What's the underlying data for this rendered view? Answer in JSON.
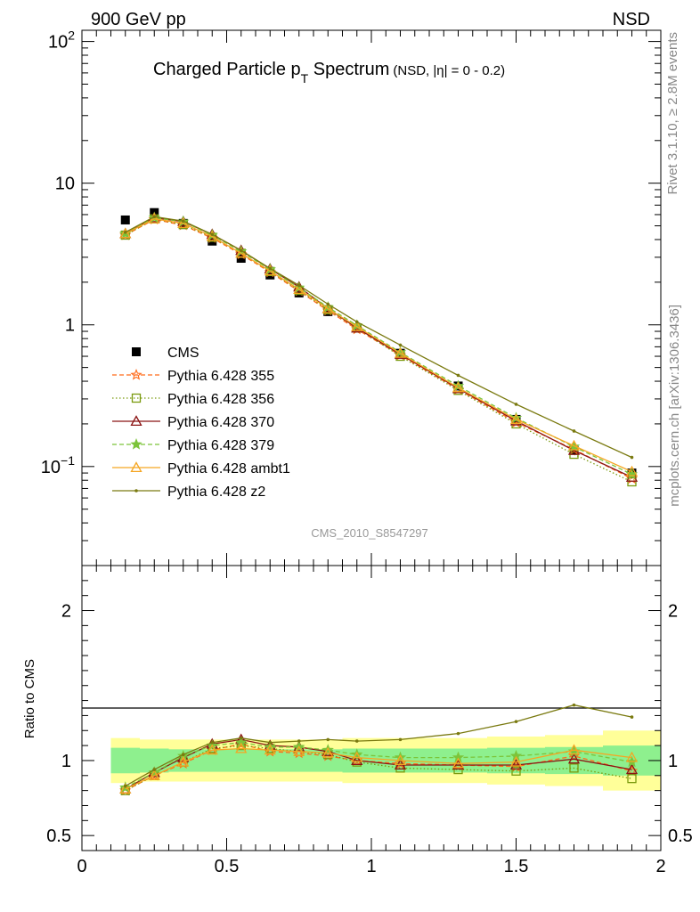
{
  "header": {
    "left": "900 GeV pp",
    "right": "NSD",
    "side_top": "Rivet 3.1.10, ≥ 2.8M events",
    "side_bottom": "mcplots.cern.ch [arXiv:1306.3436]"
  },
  "chart_data": [
    {
      "type": "scatter",
      "panel": "main",
      "title_main": "Charged Particle p",
      "title_sub": "T",
      "title_tail": " Spectrum",
      "title_small": "(NSD, |η| =   0 - 0.2)",
      "analysis_label": "CMS_2010_S8547297",
      "xlabel": "",
      "ylabel": "",
      "xlim": [
        0,
        2
      ],
      "ylim": [
        0.02,
        120
      ],
      "y_scale": "log",
      "y_ticks": [
        {
          "value": 100,
          "base": "10",
          "exp": "2"
        },
        {
          "value": 10,
          "base": "10",
          "exp": ""
        },
        {
          "value": 1,
          "base": "1",
          "exp": ""
        },
        {
          "value": 0.1,
          "base": "10",
          "exp": "−1"
        }
      ],
      "legend_position": "middle-left",
      "x": [
        0.15,
        0.25,
        0.35,
        0.45,
        0.55,
        0.65,
        0.75,
        0.85,
        0.95,
        1.1,
        1.3,
        1.5,
        1.7,
        1.9
      ],
      "series": [
        {
          "name": "CMS",
          "color": "#000000",
          "marker": "square-filled",
          "line": "none",
          "values": [
            5.5,
            6.2,
            5.2,
            3.9,
            2.95,
            2.25,
            1.68,
            1.24,
            0.95,
            0.63,
            0.37,
            0.215,
            0.13,
            0.09
          ]
        },
        {
          "name": "Pythia 6.428 355",
          "color": "#ff6b1a",
          "marker": "star-open",
          "line": "dashed",
          "values": [
            4.3,
            5.55,
            5.05,
            4.1,
            3.15,
            2.35,
            1.73,
            1.26,
            0.93,
            0.61,
            0.35,
            0.205,
            0.132,
            0.082
          ]
        },
        {
          "name": "Pythia 6.428 356",
          "color": "#7a9a0e",
          "marker": "square-open",
          "line": "dotted",
          "values": [
            4.3,
            5.6,
            5.1,
            4.15,
            3.2,
            2.38,
            1.75,
            1.28,
            0.95,
            0.6,
            0.345,
            0.2,
            0.122,
            0.078
          ]
        },
        {
          "name": "Pythia 6.428 370",
          "color": "#8b1414",
          "marker": "triangle-open",
          "line": "solid",
          "values": [
            4.4,
            5.7,
            5.35,
            4.35,
            3.35,
            2.48,
            1.85,
            1.3,
            0.95,
            0.62,
            0.355,
            0.21,
            0.13,
            0.084
          ]
        },
        {
          "name": "Pythia 6.428 379",
          "color": "#7cc43a",
          "marker": "star-filled",
          "line": "dashed",
          "values": [
            4.4,
            5.7,
            5.35,
            4.3,
            3.3,
            2.46,
            1.83,
            1.33,
            0.99,
            0.64,
            0.37,
            0.22,
            0.138,
            0.088
          ]
        },
        {
          "name": "Pythia 6.428 ambt1",
          "color": "#f5a623",
          "marker": "triangle-open",
          "line": "solid",
          "values": [
            4.4,
            5.6,
            5.2,
            4.2,
            3.2,
            2.4,
            1.78,
            1.3,
            0.97,
            0.63,
            0.36,
            0.215,
            0.14,
            0.092
          ]
        },
        {
          "name": "Pythia 6.428 z2",
          "color": "#7a7a10",
          "marker": "dot",
          "line": "solid",
          "values": [
            4.5,
            5.8,
            5.4,
            4.35,
            3.35,
            2.5,
            1.9,
            1.4,
            1.05,
            0.72,
            0.44,
            0.275,
            0.178,
            0.116
          ]
        }
      ]
    },
    {
      "type": "scatter",
      "panel": "ratio",
      "ylabel": "Ratio to CMS",
      "xlabel": "",
      "xlim": [
        0,
        2
      ],
      "ylim": [
        0.4,
        2.3
      ],
      "x_ticks": [
        "0",
        "0.5",
        "1",
        "1.5",
        "2"
      ],
      "y_ticks": [
        "0.5",
        "1",
        "2"
      ],
      "x": [
        0.15,
        0.25,
        0.35,
        0.45,
        0.55,
        0.65,
        0.75,
        0.85,
        0.95,
        1.1,
        1.3,
        1.5,
        1.7,
        1.9
      ],
      "bin_edges": [
        0.1,
        0.2,
        0.3,
        0.4,
        0.5,
        0.6,
        0.7,
        0.8,
        0.9,
        1.0,
        1.2,
        1.4,
        1.6,
        1.8,
        2.0
      ],
      "band_inner": [
        0.085,
        0.08,
        0.075,
        0.075,
        0.075,
        0.075,
        0.075,
        0.075,
        0.08,
        0.08,
        0.08,
        0.085,
        0.09,
        0.1
      ],
      "band_outer": [
        0.15,
        0.14,
        0.14,
        0.14,
        0.14,
        0.14,
        0.14,
        0.14,
        0.15,
        0.15,
        0.15,
        0.16,
        0.17,
        0.2
      ],
      "band_inner_color": "#8ef08e",
      "band_outer_color": "#ffff99",
      "series": [
        {
          "name": "Pythia 6.428 355",
          "color": "#ff6b1a",
          "marker": "star-open",
          "line": "dashed",
          "values": [
            0.8,
            0.9,
            0.98,
            1.07,
            1.11,
            1.06,
            1.05,
            1.03,
            1.0,
            0.98,
            0.97,
            0.96,
            1.03,
            0.93
          ]
        },
        {
          "name": "Pythia 6.428 356",
          "color": "#7a9a0e",
          "marker": "square-open",
          "line": "dotted",
          "values": [
            0.8,
            0.9,
            0.99,
            1.08,
            1.1,
            1.08,
            1.06,
            1.04,
            0.99,
            0.95,
            0.94,
            0.93,
            0.95,
            0.88
          ]
        },
        {
          "name": "Pythia 6.428 370",
          "color": "#8b1414",
          "marker": "triangle-open",
          "line": "solid",
          "values": [
            0.81,
            0.92,
            1.02,
            1.11,
            1.14,
            1.1,
            1.09,
            1.06,
            1.0,
            0.97,
            0.97,
            0.97,
            1.01,
            0.94
          ]
        },
        {
          "name": "Pythia 6.428 379",
          "color": "#7cc43a",
          "marker": "star-filled",
          "line": "dashed",
          "values": [
            0.82,
            0.92,
            1.03,
            1.1,
            1.12,
            1.09,
            1.09,
            1.07,
            1.04,
            1.02,
            1.02,
            1.03,
            1.06,
            0.99
          ]
        },
        {
          "name": "Pythia 6.428 ambt1",
          "color": "#f5a623",
          "marker": "triangle-open",
          "line": "solid",
          "values": [
            0.81,
            0.9,
            0.99,
            1.07,
            1.08,
            1.07,
            1.06,
            1.05,
            1.02,
            1.0,
            0.98,
            0.99,
            1.07,
            1.02
          ]
        },
        {
          "name": "Pythia 6.428 z2",
          "color": "#7a7a10",
          "marker": "dot",
          "line": "solid",
          "values": [
            0.83,
            0.94,
            1.04,
            1.12,
            1.15,
            1.12,
            1.13,
            1.14,
            1.13,
            1.14,
            1.18,
            1.26,
            1.37,
            1.29
          ]
        }
      ]
    }
  ]
}
